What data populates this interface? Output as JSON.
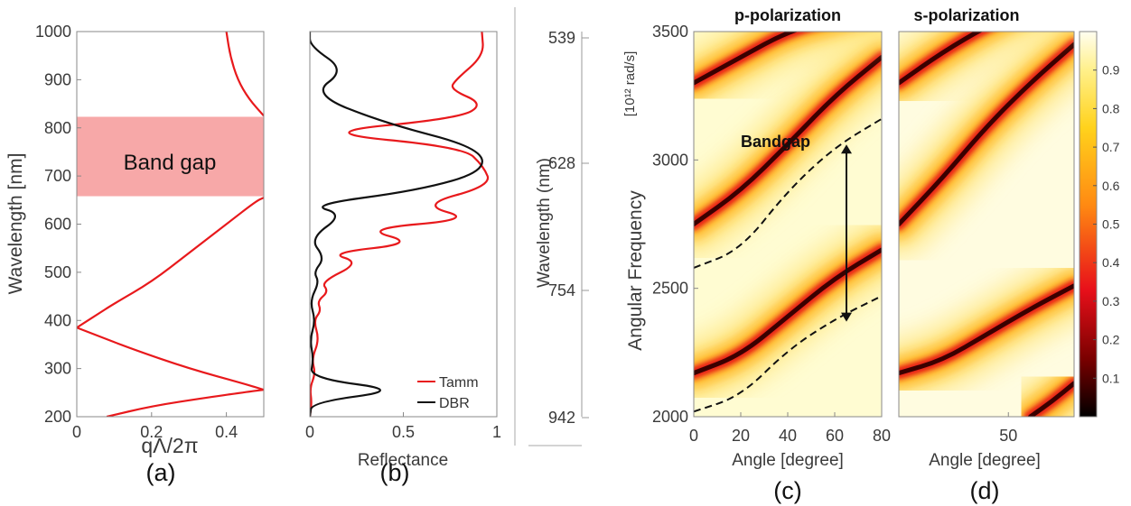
{
  "chart_data": [
    {
      "type": "line",
      "panel_label": "(a)",
      "xlabel": "qΛ/2π",
      "ylabel": "Wavelength [nm]",
      "xlim": [
        0,
        0.5
      ],
      "ylim": [
        200,
        1000
      ],
      "x_ticks": [
        "0",
        "0.2",
        "0.4"
      ],
      "y_ticks": [
        "200",
        "300",
        "400",
        "500",
        "600",
        "700",
        "800",
        "900",
        "1000"
      ],
      "band_gap": {
        "label": "Band gap",
        "range": [
          658,
          823
        ],
        "color": "#f7a8a8"
      },
      "series": [
        {
          "color": "#e8191c",
          "x": [
            0.08,
            0.2,
            0.35,
            0.46,
            0.5
          ],
          "y": [
            200,
            222,
            240,
            252,
            256
          ]
        },
        {
          "color": "#e8191c",
          "x": [
            0.5,
            0.45,
            0.3,
            0.15,
            0.05,
            0.0
          ],
          "y": [
            256,
            268,
            300,
            340,
            370,
            385
          ]
        },
        {
          "color": "#e8191c",
          "x": [
            0.0,
            0.05,
            0.1,
            0.2,
            0.3,
            0.4,
            0.48,
            0.5
          ],
          "y": [
            385,
            410,
            435,
            480,
            540,
            600,
            648,
            655
          ]
        },
        {
          "color": "#e8191c",
          "x": [
            0.5,
            0.46,
            0.43,
            0.41,
            0.4
          ],
          "y": [
            825,
            860,
            900,
            950,
            1000
          ]
        }
      ]
    },
    {
      "type": "line",
      "panel_label": "(b)",
      "xlabel": "Reflectance",
      "xlim": [
        0,
        1
      ],
      "ylim": [
        200,
        1000
      ],
      "x_ticks": [
        "0",
        "0.5",
        "1"
      ],
      "legend": {
        "position": "bottom-right"
      },
      "series": [
        {
          "name": "Tamm",
          "color": "#e8191c",
          "x": [
            0.0,
            0.01,
            0.0,
            0.03,
            0.01,
            0.05,
            0.02,
            0.06,
            0.04,
            0.1,
            0.06,
            0.27,
            0.1,
            0.57,
            0.28,
            0.88,
            0.59,
            0.97,
            0.93,
            0.82,
            0.01,
            0.8,
            0.93,
            0.75,
            0.78,
            0.93,
            0.92
          ],
          "y": [
            200,
            230,
            260,
            290,
            320,
            360,
            400,
            420,
            440,
            460,
            480,
            520,
            540,
            560,
            590,
            610,
            640,
            680,
            720,
            760,
            790,
            820,
            850,
            880,
            900,
            950,
            1000
          ]
        },
        {
          "name": "DBR",
          "color": "#111111",
          "x": [
            0.0,
            0.01,
            0.5,
            0.0,
            0.02,
            0.0,
            0.03,
            0.0,
            0.05,
            0.02,
            0.08,
            0.0,
            0.18,
            0.0,
            0.58,
            0.94,
            0.9,
            0.4,
            0.01,
            0.19,
            0.0,
            0.0
          ],
          "y": [
            200,
            230,
            255,
            280,
            320,
            360,
            400,
            440,
            480,
            500,
            530,
            570,
            620,
            640,
            670,
            710,
            760,
            810,
            870,
            920,
            970,
            1000
          ]
        }
      ]
    },
    {
      "type": "heatmap",
      "panel_label": "(c)",
      "title": "p-polarization",
      "xlabel": "Angle [degree]",
      "ylabel": "Angular Frequency [10¹² rad/s]",
      "ylabel_main": "Angular Frequency",
      "ylabel_unit": "[10¹² rad/s]",
      "xlim": [
        0,
        80
      ],
      "ylim": [
        2000,
        3500
      ],
      "x_ticks": [
        "0",
        "20",
        "40",
        "60",
        "80"
      ],
      "y_ticks": [
        "2000",
        "2500",
        "3000",
        "3500"
      ],
      "secondary_axis": {
        "label": "Wavelength (nm)",
        "ticks": [
          "539",
          "628",
          "754",
          "942"
        ]
      },
      "annotation": "Bandgap",
      "dashed_upper": {
        "x": [
          0,
          20,
          40,
          60,
          80
        ],
        "y": [
          2580,
          2650,
          2880,
          3050,
          3160
        ]
      },
      "dashed_lower": {
        "x": [
          0,
          20,
          40,
          60,
          80
        ],
        "y": [
          2020,
          2080,
          2260,
          2380,
          2470
        ]
      },
      "arrow": {
        "x": 65,
        "y_from": 2370,
        "y_to": 3060
      },
      "mode_lines": [
        {
          "x": [
            0,
            20,
            40,
            60,
            80
          ],
          "y": [
            2170,
            2240,
            2390,
            2540,
            2650
          ]
        },
        {
          "x": [
            0,
            20,
            40,
            60,
            80
          ],
          "y": [
            2750,
            2880,
            3060,
            3250,
            3400
          ]
        },
        {
          "x": [
            0,
            20,
            40,
            60,
            80
          ],
          "y": [
            3300,
            3400,
            3500,
            3550,
            3600
          ]
        }
      ]
    },
    {
      "type": "heatmap",
      "panel_label": "(d)",
      "title": "s-polarization",
      "xlabel": "Angle [degree]",
      "xlim": [
        0,
        80
      ],
      "ylim": [
        2000,
        3500
      ],
      "x_ticks": [
        "50"
      ],
      "colorbar": {
        "ticks": [
          "0.1",
          "0.2",
          "0.3",
          "0.4",
          "0.5",
          "0.6",
          "0.7",
          "0.8",
          "0.9"
        ],
        "range": [
          0,
          1
        ]
      },
      "mode_lines": [
        {
          "x": [
            0,
            20,
            40,
            60,
            80
          ],
          "y": [
            2170,
            2220,
            2320,
            2420,
            2510
          ]
        },
        {
          "x": [
            0,
            20,
            40,
            60,
            80
          ],
          "y": [
            2750,
            2930,
            3130,
            3300,
            3450
          ]
        },
        {
          "x": [
            0,
            20,
            40,
            60,
            80
          ],
          "y": [
            3300,
            3420,
            3520,
            3600,
            3650
          ]
        },
        {
          "x": [
            60,
            70,
            80
          ],
          "y": [
            2000,
            2060,
            2130
          ]
        }
      ]
    }
  ]
}
